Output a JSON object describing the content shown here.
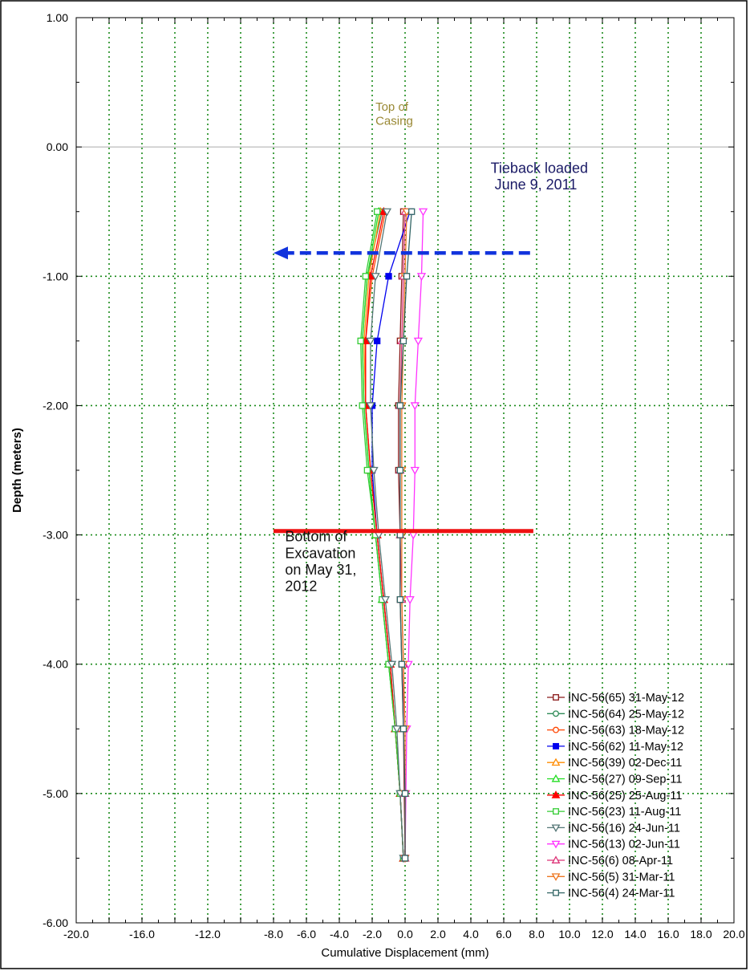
{
  "chart_data": {
    "type": "line",
    "orientation": "vertical-profile",
    "xlabel": "Cumulative Displacement (mm)",
    "ylabel": "Depth (meters)",
    "xlim": [
      -20,
      20
    ],
    "ylim": [
      -6,
      1
    ],
    "grid": true,
    "legend_position": "bottom-right",
    "x_ticks": [
      "-20.0",
      "-16.0",
      "-12.0",
      "-8.0",
      "-6.0",
      "-4.0",
      "-2.0",
      "0.0",
      "2.0",
      "4.0",
      "6.0",
      "8.0",
      "10.0",
      "12.0",
      "14.0",
      "16.0",
      "18.0",
      "20.0"
    ],
    "y_ticks": [
      "1.00",
      "0.00",
      "-1.00",
      "-2.00",
      "-3.00",
      "-4.00",
      "-5.00",
      "-6.00"
    ],
    "depths": [
      -0.5,
      -1.0,
      -1.5,
      -2.0,
      -2.5,
      -3.0,
      -3.5,
      -4.0,
      -4.5,
      -5.0,
      -5.5
    ],
    "series": [
      {
        "name": "INC-56(65) 31-May-12",
        "color": "#8b1a1a",
        "marker": "square-open",
        "x": [
          -0.1,
          -0.2,
          -0.3,
          -0.4,
          -0.4,
          -0.3,
          -0.3,
          -0.2,
          -0.1,
          -0.05,
          0.0
        ]
      },
      {
        "name": "INC-56(64) 25-May-12",
        "color": "#2e8b57",
        "marker": "circle-open",
        "x": [
          -1.4,
          -2.3,
          -2.6,
          -2.5,
          -2.2,
          -1.8,
          -1.4,
          -1.0,
          -0.6,
          -0.3,
          -0.1
        ]
      },
      {
        "name": "INC-56(63) 18-May-12",
        "color": "#ff4500",
        "marker": "circle-open",
        "x": [
          -1.2,
          -2.0,
          -2.4,
          -2.4,
          -2.1,
          -1.7,
          -1.3,
          -0.9,
          -0.6,
          -0.3,
          -0.1
        ]
      },
      {
        "name": "INC-56(62) 11-May-12",
        "color": "#0000ee",
        "marker": "square-filled",
        "x": [
          0.3,
          -1.0,
          -1.7,
          -2.0,
          -2.0,
          -1.7,
          -1.3,
          -0.9,
          -0.6,
          -0.3,
          -0.1
        ]
      },
      {
        "name": "INC-56(39) 02-Dec-11",
        "color": "#ff8c00",
        "marker": "triangle-up-open",
        "x": [
          -1.5,
          -2.2,
          -2.5,
          -2.4,
          -2.1,
          -1.7,
          -1.3,
          -0.9,
          -0.6,
          -0.3,
          -0.1
        ]
      },
      {
        "name": "INC-56(27) 09-Sep-11",
        "color": "#22dd22",
        "marker": "triangle-up-open",
        "x": [
          -1.6,
          -2.3,
          -2.6,
          -2.5,
          -2.2,
          -1.8,
          -1.4,
          -1.0,
          -0.6,
          -0.3,
          -0.1
        ]
      },
      {
        "name": "INC-56(25) 25-Aug-11",
        "color": "#ff0000",
        "marker": "triangle-up-filled",
        "x": [
          -1.3,
          -2.1,
          -2.4,
          -2.4,
          -2.1,
          -1.7,
          -1.3,
          -0.9,
          -0.6,
          -0.3,
          -0.1
        ]
      },
      {
        "name": "INC-56(23) 11-Aug-11",
        "color": "#33cc33",
        "marker": "square-open",
        "x": [
          -1.7,
          -2.4,
          -2.7,
          -2.6,
          -2.3,
          -1.8,
          -1.4,
          -1.0,
          -0.6,
          -0.3,
          -0.1
        ]
      },
      {
        "name": "INC-56(16) 24-Jun-11",
        "color": "#557777",
        "marker": "triangle-down-open",
        "x": [
          -1.1,
          -1.8,
          -2.1,
          -2.1,
          -1.9,
          -1.6,
          -1.2,
          -0.8,
          -0.5,
          -0.3,
          -0.1
        ]
      },
      {
        "name": "INC-56(13) 02-Jun-11",
        "color": "#ff33ff",
        "marker": "triangle-down-open",
        "x": [
          1.1,
          1.0,
          0.8,
          0.6,
          0.6,
          0.5,
          0.3,
          0.2,
          0.1,
          0.05,
          0.0
        ]
      },
      {
        "name": "INC-56(6) 08-Apr-11",
        "color": "#dd3377",
        "marker": "triangle-up-open",
        "x": [
          0.0,
          -0.1,
          -0.2,
          -0.3,
          -0.3,
          -0.3,
          -0.2,
          -0.1,
          -0.1,
          0.0,
          0.0
        ]
      },
      {
        "name": "INC-56(5) 31-Mar-11",
        "color": "#ee7722",
        "marker": "triangle-down-open",
        "x": [
          0.1,
          0.0,
          -0.1,
          -0.2,
          -0.2,
          -0.2,
          -0.2,
          -0.1,
          0.0,
          0.0,
          0.0
        ]
      },
      {
        "name": "INC-56(4) 24-Mar-11",
        "color": "#336666",
        "marker": "square-open",
        "x": [
          0.4,
          0.1,
          -0.1,
          -0.3,
          -0.3,
          -0.3,
          -0.3,
          -0.2,
          -0.1,
          0.0,
          0.0
        ]
      }
    ],
    "annotations": [
      {
        "text_lines": [
          "Top of",
          "Casing"
        ],
        "x": -1.8,
        "depth": 0.28,
        "color": "#998833",
        "size": 15
      },
      {
        "text_lines": [
          "Tieback loaded",
          " June 9, 2011"
        ],
        "x": 5.2,
        "depth": -0.2,
        "color": "#1a1a66",
        "size": 18
      },
      {
        "text_lines": [
          "Bottom of",
          "Excavation",
          "on May 31,",
          "2012"
        ],
        "x": -7.3,
        "depth": -3.05,
        "color": "#111111",
        "size": 18
      }
    ],
    "tieback_arrow": {
      "depth": -0.82,
      "x_from": 7.6,
      "x_to": -8.0,
      "color": "#1133dd"
    },
    "excavation_line": {
      "depth": -2.97,
      "x_from": -8.0,
      "x_to": 7.8,
      "color": "#ee1111"
    }
  }
}
